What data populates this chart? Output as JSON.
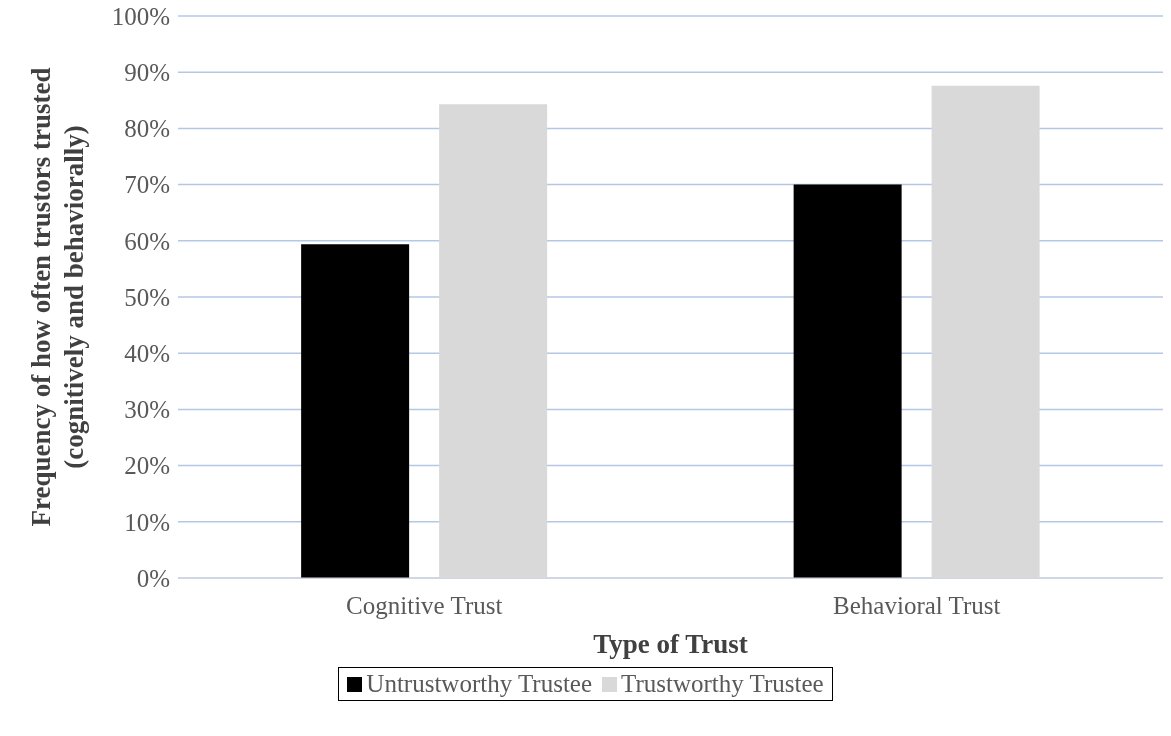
{
  "chart_data": {
    "type": "bar",
    "xlabel": "Type of Trust",
    "ylabel": "Frequency of how often trustors trusted\n(cognitively and behaviorally)",
    "categories": [
      "Cognitive Trust",
      "Behavioral Trust"
    ],
    "series": [
      {
        "name": "Untrustworthy Trustee",
        "color": "#000000",
        "values": [
          59.4,
          70
        ]
      },
      {
        "name": "Trustworthy Trustee",
        "color": "#d9d9d9",
        "values": [
          84.3,
          87.6
        ]
      }
    ],
    "ylim": [
      0,
      100
    ],
    "yticks": [
      {
        "value": 0,
        "label": "0%"
      },
      {
        "value": 10,
        "label": "10%"
      },
      {
        "value": 20,
        "label": "20%"
      },
      {
        "value": 30,
        "label": "30%"
      },
      {
        "value": 40,
        "label": "40%"
      },
      {
        "value": 50,
        "label": "50%"
      },
      {
        "value": 60,
        "label": "60%"
      },
      {
        "value": 70,
        "label": "70%"
      },
      {
        "value": 80,
        "label": "80%"
      },
      {
        "value": 90,
        "label": "90%"
      },
      {
        "value": 100,
        "label": "100%"
      }
    ],
    "grid": "y",
    "legend": "bottom"
  }
}
